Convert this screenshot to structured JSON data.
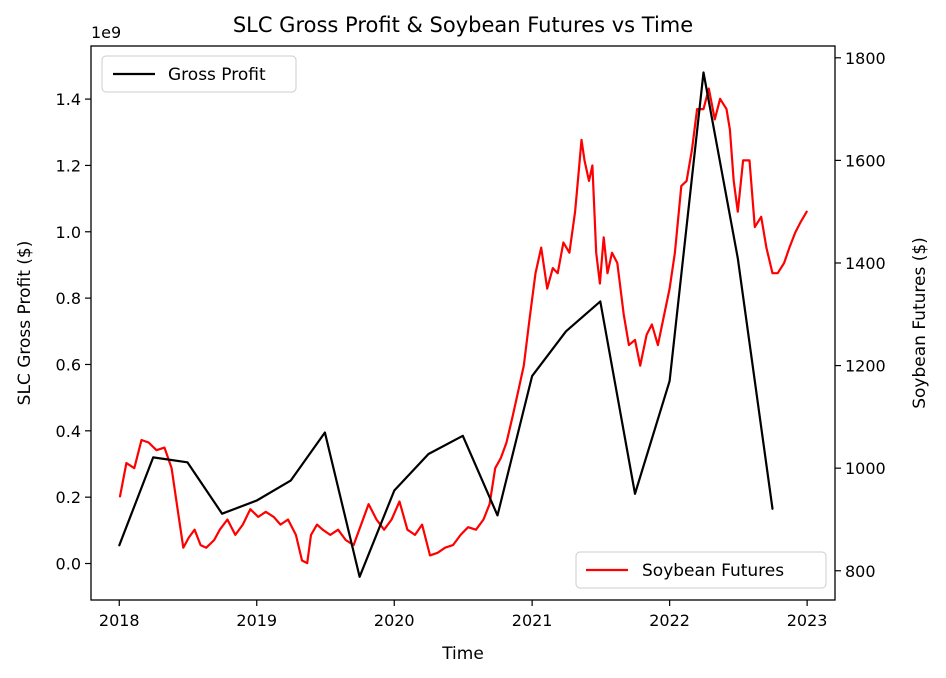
{
  "chart_data": {
    "type": "line",
    "title": "SLC Gross Profit & Soybean Futures vs Time",
    "xlabel": "Time",
    "x_ticks": [
      "2018",
      "2019",
      "2020",
      "2021",
      "2022",
      "2023"
    ],
    "xlim": [
      "2017-10-18",
      "2023-03-16"
    ],
    "left_axis": {
      "label": "SLC Gross Profit ($)",
      "offset_label": "1e9",
      "ylim": [
        -0.11,
        1.56
      ],
      "ticks": [
        0.0,
        0.2,
        0.4,
        0.6,
        0.8,
        1.0,
        1.2,
        1.4
      ],
      "tick_labels": [
        "0.0",
        "0.2",
        "0.4",
        "0.6",
        "0.8",
        "1.0",
        "1.2",
        "1.4"
      ]
    },
    "right_axis": {
      "label": "Soybean Futures ($)",
      "ylim": [
        743,
        1823
      ],
      "ticks": [
        800,
        1000,
        1200,
        1400,
        1600,
        1800
      ],
      "tick_labels": [
        "800",
        "1000",
        "1200",
        "1400",
        "1600",
        "1800"
      ]
    },
    "grid": false,
    "series": [
      {
        "name": "Gross Profit",
        "axis": "left",
        "color": "#000000",
        "legend_position": "top-left",
        "x": [
          "2018-01-01",
          "2018-04-01",
          "2018-07-01",
          "2018-10-01",
          "2019-01-01",
          "2019-04-01",
          "2019-07-01",
          "2019-10-01",
          "2020-01-01",
          "2020-04-01",
          "2020-07-01",
          "2020-10-01",
          "2021-01-01",
          "2021-04-01",
          "2021-07-01",
          "2021-10-01",
          "2022-01-01",
          "2022-04-01",
          "2022-07-01",
          "2022-10-01"
        ],
        "y": [
          0.055,
          0.32,
          0.305,
          0.15,
          0.19,
          0.25,
          0.395,
          -0.04,
          0.22,
          0.33,
          0.385,
          0.145,
          0.565,
          0.7,
          0.79,
          0.21,
          0.55,
          1.48,
          0.92,
          0.165
        ]
      },
      {
        "name": "Soybean Futures",
        "axis": "right",
        "color": "#ff0000",
        "legend_position": "bottom-right",
        "x": [
          "2018-01-03",
          "2018-01-20",
          "2018-02-10",
          "2018-03-01",
          "2018-03-20",
          "2018-04-10",
          "2018-05-01",
          "2018-05-20",
          "2018-06-05",
          "2018-06-20",
          "2018-07-05",
          "2018-07-20",
          "2018-08-05",
          "2018-08-20",
          "2018-09-10",
          "2018-09-25",
          "2018-10-15",
          "2018-11-05",
          "2018-11-25",
          "2018-12-15",
          "2019-01-05",
          "2019-01-25",
          "2019-02-15",
          "2019-03-05",
          "2019-03-25",
          "2019-04-15",
          "2019-05-01",
          "2019-05-15",
          "2019-05-25",
          "2019-06-10",
          "2019-06-25",
          "2019-07-15",
          "2019-08-05",
          "2019-08-25",
          "2019-09-15",
          "2019-10-05",
          "2019-10-25",
          "2019-11-15",
          "2019-12-05",
          "2019-12-25",
          "2020-01-15",
          "2020-02-05",
          "2020-02-25",
          "2020-03-15",
          "2020-04-05",
          "2020-04-25",
          "2020-05-15",
          "2020-06-05",
          "2020-06-25",
          "2020-07-15",
          "2020-08-05",
          "2020-08-25",
          "2020-09-10",
          "2020-09-25",
          "2020-10-10",
          "2020-10-25",
          "2020-11-10",
          "2020-11-25",
          "2020-12-10",
          "2020-12-25",
          "2021-01-10",
          "2021-01-25",
          "2021-02-10",
          "2021-02-25",
          "2021-03-10",
          "2021-03-25",
          "2021-04-10",
          "2021-04-25",
          "2021-05-05",
          "2021-05-12",
          "2021-05-20",
          "2021-06-01",
          "2021-06-10",
          "2021-06-20",
          "2021-06-30",
          "2021-07-10",
          "2021-07-20",
          "2021-08-01",
          "2021-08-15",
          "2021-09-01",
          "2021-09-15",
          "2021-10-01",
          "2021-10-15",
          "2021-11-01",
          "2021-11-15",
          "2021-12-01",
          "2021-12-15",
          "2022-01-01",
          "2022-01-15",
          "2022-02-01",
          "2022-02-15",
          "2022-03-01",
          "2022-03-15",
          "2022-04-01",
          "2022-04-15",
          "2022-05-01",
          "2022-05-15",
          "2022-06-01",
          "2022-06-10",
          "2022-06-20",
          "2022-07-01",
          "2022-07-15",
          "2022-08-01",
          "2022-08-15",
          "2022-09-01",
          "2022-09-15",
          "2022-10-01",
          "2022-10-15",
          "2022-11-01",
          "2022-11-15",
          "2022-12-01",
          "2022-12-15",
          "2022-12-31"
        ],
        "y": [
          945,
          1010,
          1000,
          1055,
          1050,
          1035,
          1040,
          1000,
          920,
          845,
          865,
          880,
          850,
          845,
          860,
          880,
          900,
          870,
          890,
          920,
          905,
          915,
          905,
          890,
          900,
          870,
          820,
          815,
          870,
          890,
          880,
          870,
          880,
          860,
          850,
          890,
          930,
          900,
          880,
          900,
          935,
          880,
          870,
          890,
          830,
          835,
          845,
          850,
          870,
          885,
          880,
          900,
          930,
          1000,
          1020,
          1050,
          1100,
          1150,
          1200,
          1290,
          1380,
          1430,
          1350,
          1390,
          1380,
          1440,
          1420,
          1500,
          1580,
          1640,
          1600,
          1560,
          1590,
          1420,
          1360,
          1450,
          1380,
          1420,
          1400,
          1300,
          1240,
          1250,
          1200,
          1260,
          1280,
          1240,
          1290,
          1350,
          1420,
          1550,
          1560,
          1620,
          1700,
          1700,
          1740,
          1680,
          1720,
          1700,
          1660,
          1560,
          1500,
          1600,
          1600,
          1470,
          1490,
          1430,
          1380,
          1380,
          1400,
          1430,
          1460,
          1480,
          1500
        ]
      }
    ]
  }
}
